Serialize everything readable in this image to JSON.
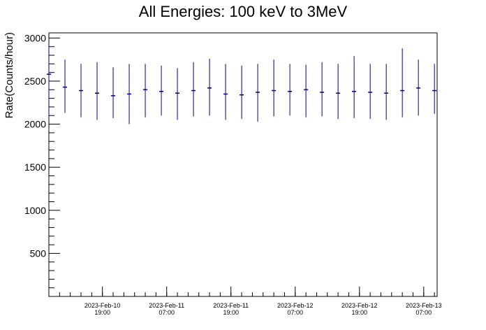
{
  "chart_data": {
    "type": "scatter",
    "title": "All Energies:  100 keV to 3MeV",
    "xlabel": "",
    "ylabel": "Rate(Counts/hour)",
    "ylim": [
      0,
      3060
    ],
    "xlim": [
      "2023-02-10 09:00",
      "2023-02-13 09:30"
    ],
    "yticks": [
      500,
      1000,
      1500,
      2000,
      2500,
      3000
    ],
    "xticks": [
      {
        "date": "2023-Feb-10",
        "time": "19:00",
        "x": "2023-02-10 19:00"
      },
      {
        "date": "2023-Feb-11",
        "time": "07:00",
        "x": "2023-02-11 07:00"
      },
      {
        "date": "2023-Feb-11",
        "time": "19:00",
        "x": "2023-02-11 19:00"
      },
      {
        "date": "2023-Feb-12",
        "time": "07:00",
        "x": "2023-02-12 07:00"
      },
      {
        "date": "2023-Feb-12",
        "time": "19:00",
        "x": "2023-02-12 19:00"
      },
      {
        "date": "2023-Feb-13",
        "time": "07:00",
        "x": "2023-02-13 07:00"
      }
    ],
    "grid": false,
    "legend": "none",
    "series_color": "#000080",
    "series": [
      {
        "x": [
          "2023-02-10 09:00",
          "2023-02-10 12:00",
          "2023-02-10 15:00",
          "2023-02-10 18:00",
          "2023-02-10 21:00",
          "2023-02-11 00:00",
          "2023-02-11 03:00",
          "2023-02-11 06:00",
          "2023-02-11 09:00",
          "2023-02-11 12:00",
          "2023-02-11 15:00",
          "2023-02-11 18:00",
          "2023-02-11 21:00",
          "2023-02-12 00:00",
          "2023-02-12 03:00",
          "2023-02-12 06:00",
          "2023-02-12 09:00",
          "2023-02-12 12:00",
          "2023-02-12 15:00",
          "2023-02-12 18:00",
          "2023-02-12 21:00",
          "2023-02-13 00:00",
          "2023-02-13 03:00",
          "2023-02-13 06:00",
          "2023-02-13 09:00"
        ],
        "values": [
          2580,
          2430,
          2390,
          2360,
          2330,
          2350,
          2400,
          2380,
          2360,
          2390,
          2420,
          2350,
          2340,
          2370,
          2390,
          2380,
          2400,
          2370,
          2360,
          2380,
          2370,
          2360,
          2390,
          2420,
          2390
        ],
        "ymin": [
          2100,
          2130,
          2080,
          2050,
          2070,
          2000,
          2080,
          2100,
          2050,
          2090,
          2100,
          2050,
          2060,
          2030,
          2090,
          2100,
          2080,
          2090,
          2060,
          2070,
          2060,
          2050,
          2080,
          2100,
          2120
        ],
        "ymax": [
          2920,
          2750,
          2700,
          2720,
          2660,
          2700,
          2700,
          2680,
          2650,
          2720,
          2760,
          2700,
          2680,
          2700,
          2750,
          2700,
          2690,
          2720,
          2700,
          2790,
          2700,
          2700,
          2880,
          2750,
          2700
        ]
      }
    ]
  }
}
